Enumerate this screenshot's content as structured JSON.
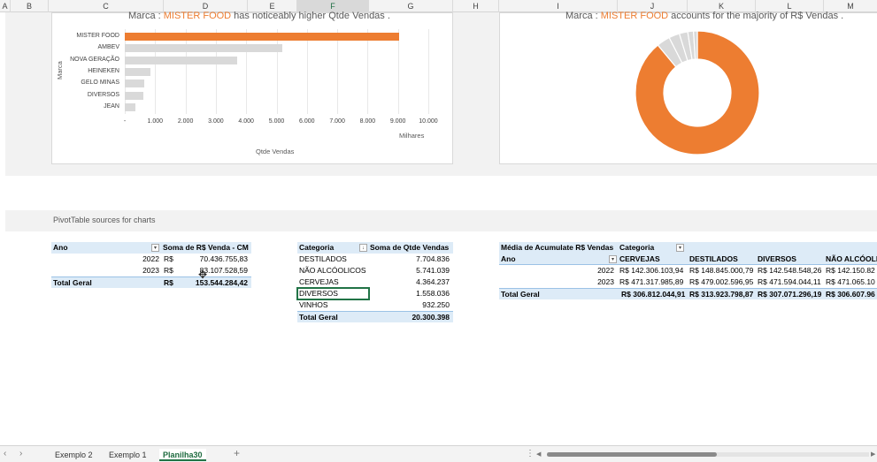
{
  "columns": [
    "A",
    "B",
    "C",
    "D",
    "E",
    "F",
    "G",
    "H",
    "I",
    "J",
    "K",
    "L",
    "M"
  ],
  "bar_chart": {
    "title_prefix": "Marca : ",
    "title_highlight": "MISTER FOOD",
    "title_suffix": " has noticeably higher  Qtde Vendas .",
    "y_axis_title": "Marca",
    "x_axis_title": "Qtde Vendas",
    "x_unit_label": "Milhares",
    "highlight_color": "#ed7d31",
    "base_color": "#d9d9d9"
  },
  "chart_data": [
    {
      "type": "bar",
      "orientation": "horizontal",
      "categories": [
        "MISTER FOOD",
        "AMBEV",
        "NOVA GERAÇÃO",
        "HEINEKEN",
        "GELO MINAS",
        "DIVERSOS",
        "JEAN"
      ],
      "values": [
        9050,
        5200,
        3700,
        850,
        650,
        600,
        350
      ],
      "x_ticks": [
        "-",
        "1.000",
        "2.000",
        "3.000",
        "4.000",
        "5.000",
        "6.000",
        "7.000",
        "8.000",
        "9.000",
        "10.000"
      ],
      "xlim": [
        0,
        10000
      ],
      "xlabel": "Qtde Vendas",
      "ylabel": "Marca",
      "unit": "Milhares"
    },
    {
      "type": "pie",
      "donut": true,
      "values": [
        89.0,
        3.5,
        2.8,
        2.2,
        1.5,
        1.0
      ],
      "colors": [
        "#ed7d31",
        "#d9d9d9",
        "#d9d9d9",
        "#d9d9d9",
        "#d9d9d9",
        "#d9d9d9"
      ]
    }
  ],
  "donut_chart": {
    "title_prefix": "Marca : ",
    "title_highlight": "MISTER FOOD",
    "title_suffix": " accounts for the majority of  R$ Vendas ."
  },
  "section_label": "PivotTable sources for charts",
  "pivot1": {
    "header_col1": "Ano",
    "header_col2": "Soma de R$ Venda - CM",
    "rows": [
      {
        "year": "2022",
        "currency": "R$",
        "value": "70.436.755,83"
      },
      {
        "year": "2023",
        "currency": "R$",
        "value": "83.107.528,59"
      }
    ],
    "total_label": "Total Geral",
    "total_currency": "R$",
    "total_value": "153.544.284,42"
  },
  "pivot2": {
    "header_col1": "Categoria",
    "header_col2": "Soma de Qtde Vendas",
    "rows": [
      {
        "cat": "DESTILADOS",
        "value": "7.704.836"
      },
      {
        "cat": "NÃO ALCÓOLICOS",
        "value": "5.741.039"
      },
      {
        "cat": "CERVEJAS",
        "value": "4.364.237"
      },
      {
        "cat": "DIVERSOS",
        "value": "1.558.036"
      },
      {
        "cat": "VINHOS",
        "value": "932.250"
      }
    ],
    "total_label": "Total Geral",
    "total_value": "20.300.398"
  },
  "pivot3": {
    "title": "Média de Acumulate R$ Vendas",
    "col_field": "Categoria",
    "row_field": "Ano",
    "columns": [
      "CERVEJAS",
      "DESTILADOS",
      "DIVERSOS",
      "NÃO ALCÓOLI"
    ],
    "rows": [
      {
        "year": "2022",
        "values": [
          "R$ 142.306.103,94",
          "R$ 148.845.000,79",
          "R$ 142.548.548,26",
          "R$ 142.150.82"
        ]
      },
      {
        "year": "2023",
        "values": [
          "R$ 471.317.985,89",
          "R$ 479.002.596,95",
          "R$ 471.594.044,11",
          "R$ 471.065.10"
        ]
      }
    ],
    "total_label": "Total Geral",
    "totals": [
      "R$ 306.812.044,91",
      "R$ 313.923.798,87",
      "R$ 307.071.296,19",
      "R$ 306.607.96"
    ]
  },
  "tabs": [
    "Exemplo 2",
    "Exemplo 1",
    "Planilha30"
  ],
  "active_tab": "Planilha30",
  "add_sheet_label": "+",
  "nav_prev": "‹",
  "nav_next": "›",
  "menu_dots": "⋮",
  "scroll_left": "◀",
  "scroll_right": "▶"
}
